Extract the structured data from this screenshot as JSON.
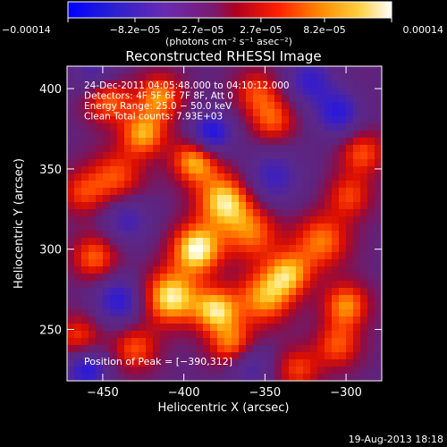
{
  "chart_data": {
    "type": "heatmap",
    "title": "Reconstructed RHESSI Image",
    "xlabel": "Heliocentric X (arcsec)",
    "ylabel": "Heliocentric Y (arcsec)",
    "xlim": [
      -472,
      -278
    ],
    "ylim": [
      218,
      414
    ],
    "xticks": [
      -450,
      -400,
      -350,
      -300
    ],
    "xtick_labels": [
      "−450",
      "−400",
      "−350",
      "−300"
    ],
    "yticks": [
      250,
      300,
      350,
      400
    ],
    "ytick_labels": [
      "250",
      "300",
      "350",
      "400"
    ],
    "colorbar": {
      "range": [
        -0.00014,
        0.00014
      ],
      "ticks": [
        -0.00014,
        -8.2e-05,
        -2.7e-05,
        2.7e-05,
        8.2e-05,
        0.00014
      ],
      "tick_labels": [
        "−0.00014",
        "−8.2e−05",
        "−2.7e−05",
        "2.7e−05",
        "8.2e−05",
        "0.00014"
      ],
      "label": "(photons cm⁻² s⁻¹ asec⁻²)",
      "colormap": [
        "#0000ff",
        "#4b1e9a",
        "#7a2fa0",
        "#aa0028",
        "#ff1200",
        "#ff7a00",
        "#ffe040",
        "#ffffff"
      ]
    },
    "annotations": [
      "24-Dec-2011 04:05:48.000 to 04:10:12.000",
      "Detectors: 4F 5F 6F 7F 8F, Att 0",
      "Energy Range: 25.0 − 50.0 keV",
      "Clean    Total counts: 7.93E+03"
    ],
    "peak_label": "Position of Peak = [−390,312]",
    "peak_position": [
      -390,
      312
    ],
    "blobs": [
      {
        "x": -392,
        "y": 300,
        "v": 1.0,
        "s": 11
      },
      {
        "x": -375,
        "y": 330,
        "v": 0.9,
        "s": 12
      },
      {
        "x": -408,
        "y": 270,
        "v": 0.95,
        "s": 12
      },
      {
        "x": -380,
        "y": 262,
        "v": 0.85,
        "s": 10
      },
      {
        "x": -393,
        "y": 355,
        "v": 0.8,
        "s": 10
      },
      {
        "x": -425,
        "y": 372,
        "v": 0.75,
        "s": 10
      },
      {
        "x": -415,
        "y": 395,
        "v": 0.7,
        "s": 10
      },
      {
        "x": -447,
        "y": 393,
        "v": 0.65,
        "s": 10
      },
      {
        "x": -442,
        "y": 345,
        "v": 0.55,
        "s": 12
      },
      {
        "x": -455,
        "y": 295,
        "v": 0.6,
        "s": 10
      },
      {
        "x": -430,
        "y": 238,
        "v": 0.55,
        "s": 10
      },
      {
        "x": -350,
        "y": 270,
        "v": 0.75,
        "s": 12
      },
      {
        "x": -335,
        "y": 285,
        "v": 0.7,
        "s": 10
      },
      {
        "x": -358,
        "y": 310,
        "v": 0.6,
        "s": 12
      },
      {
        "x": -315,
        "y": 305,
        "v": 0.65,
        "s": 12
      },
      {
        "x": -300,
        "y": 265,
        "v": 0.7,
        "s": 10
      },
      {
        "x": -305,
        "y": 240,
        "v": 0.55,
        "s": 10
      },
      {
        "x": -330,
        "y": 225,
        "v": 0.5,
        "s": 10
      },
      {
        "x": -345,
        "y": 380,
        "v": 0.55,
        "s": 10
      },
      {
        "x": -355,
        "y": 398,
        "v": 0.5,
        "s": 10
      },
      {
        "x": -290,
        "y": 360,
        "v": 0.55,
        "s": 10
      },
      {
        "x": -298,
        "y": 333,
        "v": 0.5,
        "s": 10
      },
      {
        "x": -465,
        "y": 245,
        "v": 0.5,
        "s": 10
      },
      {
        "x": -463,
        "y": 335,
        "v": 0.45,
        "s": 10
      },
      {
        "x": -370,
        "y": 240,
        "v": 0.7,
        "s": 10
      },
      {
        "x": -383,
        "y": 372,
        "v": -0.85,
        "s": 9
      },
      {
        "x": -305,
        "y": 385,
        "v": -0.7,
        "s": 10
      },
      {
        "x": -345,
        "y": 345,
        "v": -0.55,
        "s": 12
      },
      {
        "x": -440,
        "y": 268,
        "v": -0.7,
        "s": 10
      },
      {
        "x": -460,
        "y": 225,
        "v": -0.75,
        "s": 9
      },
      {
        "x": -435,
        "y": 318,
        "v": -0.5,
        "s": 10
      },
      {
        "x": -360,
        "y": 228,
        "v": -0.5,
        "s": 10
      },
      {
        "x": -455,
        "y": 410,
        "v": -0.45,
        "s": 10
      },
      {
        "x": -322,
        "y": 405,
        "v": -0.6,
        "s": 10
      }
    ]
  },
  "footer": {
    "date": "19-Aug-2013 18:18"
  }
}
